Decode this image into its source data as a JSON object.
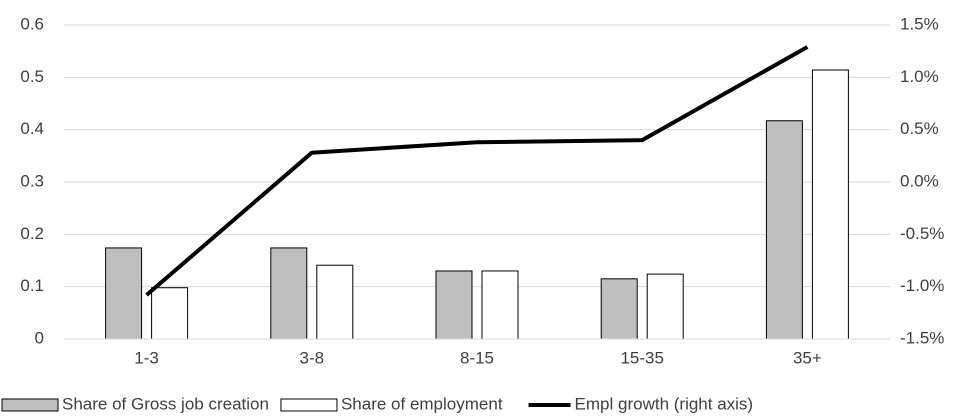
{
  "chart_data": {
    "type": "bar-line",
    "categories": [
      "1-3",
      "3-8",
      "8-15",
      "15-35",
      "35+"
    ],
    "series": [
      {
        "name": "Share of Gross job creation",
        "type": "bar",
        "color": "#bfbfbf",
        "values": [
          0.174,
          0.174,
          0.13,
          0.115,
          0.417
        ]
      },
      {
        "name": "Share of employment",
        "type": "bar",
        "color": "#ffffff",
        "values": [
          0.098,
          0.141,
          0.13,
          0.124,
          0.514
        ]
      },
      {
        "name": "Empl growth (right axis)",
        "type": "line",
        "axis": "y2",
        "color": "#000000",
        "values": [
          -1.08,
          0.28,
          0.38,
          0.4,
          1.29
        ]
      }
    ],
    "ylim": [
      0,
      0.6
    ],
    "yticks": [
      0,
      0.1,
      0.2,
      0.3,
      0.4,
      0.5,
      0.6
    ],
    "y2lim": [
      -1.5,
      1.5
    ],
    "y2ticks": [
      {
        "value": -1.5,
        "label": "-1.5%"
      },
      {
        "value": -1,
        "label": "-1.0%"
      },
      {
        "value": -0.5,
        "label": "-0.5%"
      },
      {
        "value": 0,
        "label": "0.0%"
      },
      {
        "value": 0.5,
        "label": "0.5%"
      },
      {
        "value": 1,
        "label": "1.0%"
      },
      {
        "value": 1.5,
        "label": "1.5%"
      }
    ],
    "grid": true,
    "legend": "bottom"
  }
}
